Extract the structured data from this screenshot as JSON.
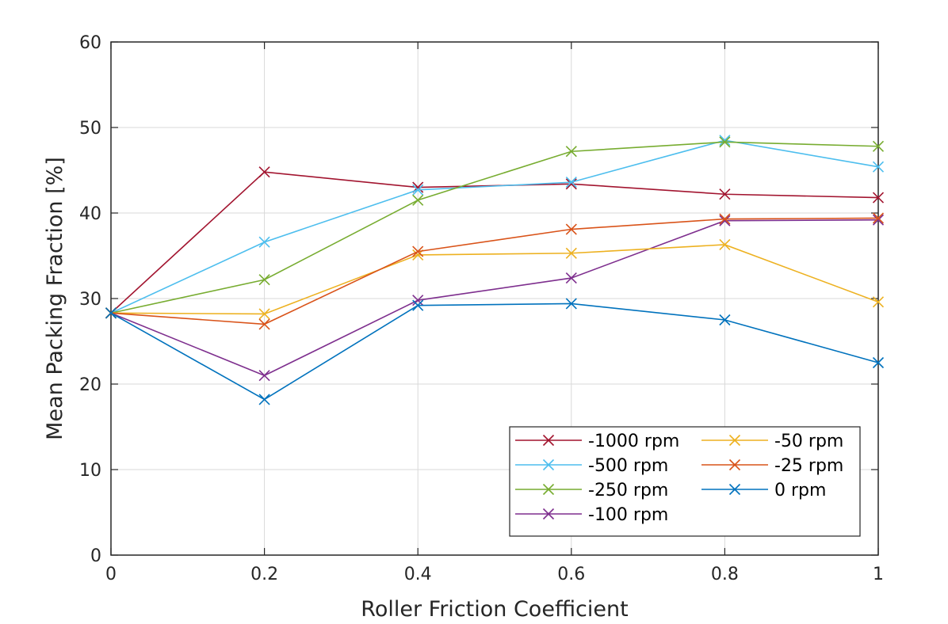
{
  "chart_data": {
    "type": "line",
    "title": "",
    "xlabel": "Roller Friction Coefficient",
    "ylabel": "Mean Packing Fraction [%]",
    "xlim": [
      0,
      1
    ],
    "ylim": [
      0,
      60
    ],
    "grid": true,
    "x": [
      0,
      0.2,
      0.4,
      0.6,
      0.8,
      1
    ],
    "x_tick_labels": [
      "0",
      "0.2",
      "0.4",
      "0.6",
      "0.8",
      "1"
    ],
    "y_ticks": [
      0,
      10,
      20,
      30,
      40,
      50,
      60
    ],
    "y_tick_labels": [
      "0",
      "10",
      "20",
      "30",
      "40",
      "50",
      "60"
    ],
    "legend_location": "bottom-right",
    "legend_columns": 2,
    "marker": "x",
    "series": [
      {
        "name": "-1000 rpm",
        "color": "#A2142F",
        "values": [
          28.3,
          44.8,
          43.0,
          43.4,
          42.2,
          41.8
        ]
      },
      {
        "name": "-500 rpm",
        "color": "#4DBEEE",
        "values": [
          28.3,
          36.6,
          42.7,
          43.6,
          48.5,
          45.4
        ]
      },
      {
        "name": "-250 rpm",
        "color": "#77AC30",
        "values": [
          28.3,
          32.2,
          41.5,
          47.2,
          48.3,
          47.8
        ]
      },
      {
        "name": "-100 rpm",
        "color": "#7E2F8E",
        "values": [
          28.3,
          21.0,
          29.8,
          32.4,
          39.1,
          39.2
        ]
      },
      {
        "name": "-50 rpm",
        "color": "#EDB120",
        "values": [
          28.3,
          28.2,
          35.1,
          35.3,
          36.3,
          29.6
        ]
      },
      {
        "name": "-25 rpm",
        "color": "#D95319",
        "values": [
          28.3,
          27.0,
          35.5,
          38.1,
          39.3,
          39.4
        ]
      },
      {
        "name": "0 rpm",
        "color": "#0072BD",
        "values": [
          28.3,
          18.2,
          29.2,
          29.4,
          27.5,
          22.5
        ]
      }
    ]
  }
}
